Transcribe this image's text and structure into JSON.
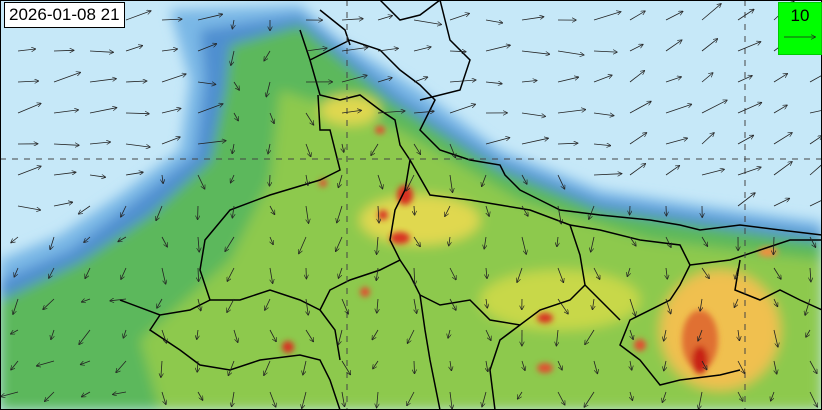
{
  "map": {
    "timestamp": "2026-01-08 21",
    "legend": {
      "reference_vector_value": "10",
      "background_color": "#00ff00"
    },
    "colors": {
      "ocean": "#c6e8f8",
      "low": "#7ab8e6",
      "mid_blue": "#4f8fd0",
      "green": "#5cb85c",
      "light_green": "#9acd4a",
      "yellow": "#f0e060",
      "orange": "#f09040",
      "red": "#d83020"
    },
    "grid_lines": "dashed",
    "overlay": "wind-vectors"
  }
}
